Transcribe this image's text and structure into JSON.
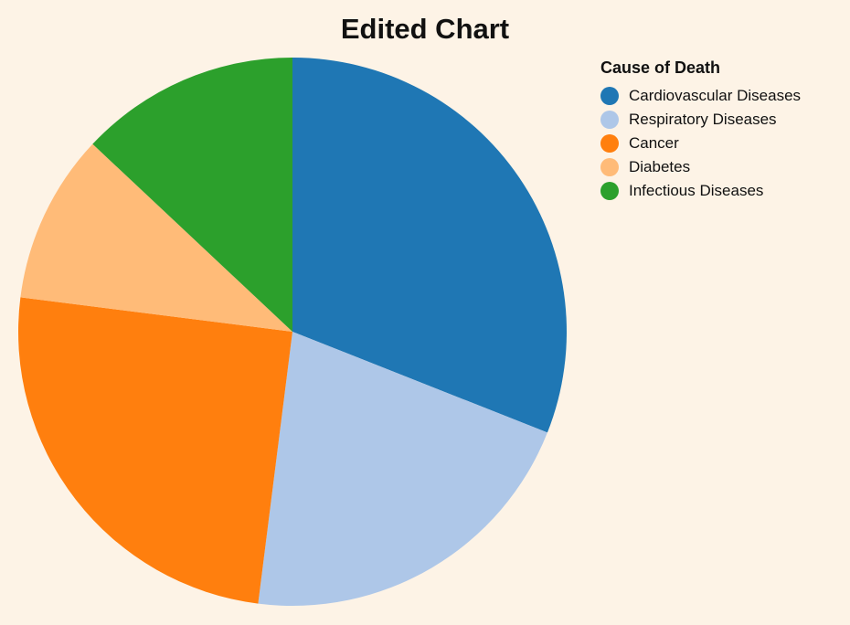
{
  "chart_data": {
    "type": "pie",
    "title": "Edited Chart",
    "legend_title": "Cause of Death",
    "legend_position": "top-right",
    "categories": [
      "Cardiovascular Diseases",
      "Respiratory Diseases",
      "Cancer",
      "Diabetes",
      "Infectious Diseases"
    ],
    "values": [
      31,
      21,
      25,
      10,
      13
    ],
    "colors": [
      "#1f77b4",
      "#aec7e8",
      "#ff7f0e",
      "#ffbb78",
      "#2ca02c"
    ]
  }
}
